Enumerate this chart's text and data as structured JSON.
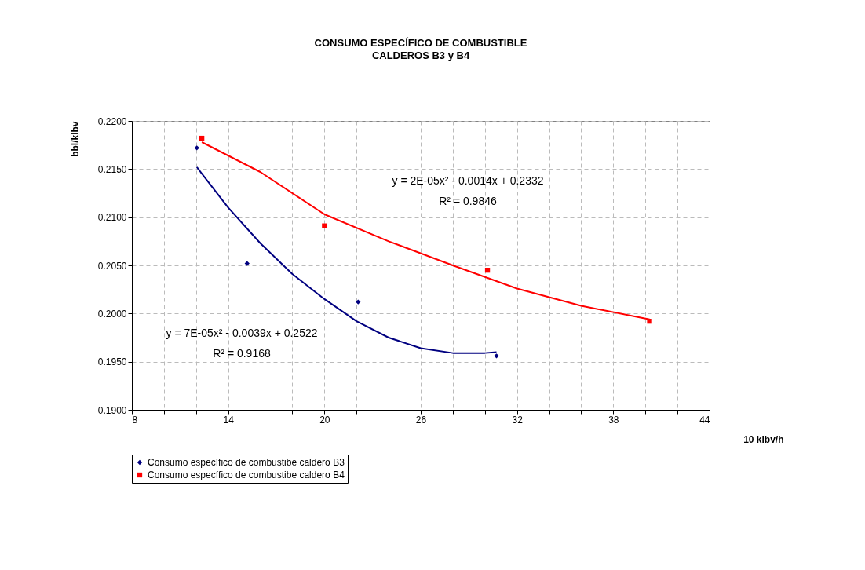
{
  "chart_data": {
    "type": "scatter",
    "title": "CONSUMO ESPECÍFICO DE COMBUSTIBLE",
    "subtitle": "CALDEROS B3 y B4",
    "xlabel": "10 klbv/h",
    "ylabel": "bbl/klbv",
    "xlim": [
      8,
      44
    ],
    "xticks": [
      8,
      {
        "value": 10,
        "label": null
      },
      {
        "value": 12,
        "label": null
      },
      14,
      {
        "value": 16,
        "label": null
      },
      {
        "value": 18,
        "label": null
      },
      20,
      {
        "value": 22,
        "label": null
      },
      {
        "value": 24,
        "label": null
      },
      26,
      {
        "value": 28,
        "label": null
      },
      {
        "value": 30,
        "label": null
      },
      32,
      {
        "value": 34,
        "label": null
      },
      {
        "value": 36,
        "label": null
      },
      38,
      {
        "value": 40,
        "label": null
      },
      {
        "value": 42,
        "label": null
      },
      44
    ],
    "ylim": [
      0.19,
      0.22
    ],
    "yticks": [
      {
        "value": 0.19,
        "label": "0.1900"
      },
      {
        "value": 0.195,
        "label": "0.1950"
      },
      {
        "value": 0.2,
        "label": "0.2000"
      },
      {
        "value": 0.205,
        "label": "0.2050"
      },
      {
        "value": 0.21,
        "label": "0.2100"
      },
      {
        "value": 0.215,
        "label": "0.2150"
      },
      {
        "value": 0.22,
        "label": "0.2200"
      }
    ],
    "grid": true,
    "legend": "bottom",
    "series": [
      {
        "name": "Consumo específico de combustibe caldero B3",
        "type": "scatter",
        "marker": "diamond",
        "color": "#000080",
        "x": [
          12.05,
          15.18,
          22.1,
          30.72
        ],
        "values": [
          0.2172,
          0.2052,
          0.2012,
          0.1956
        ]
      },
      {
        "name": "Consumo específico de combustibe caldero B4",
        "type": "scatter",
        "marker": "square",
        "color": "#ff0000",
        "x": [
          12.36,
          20.0,
          30.16,
          40.26
        ],
        "values": [
          0.2182,
          0.2091,
          0.2045,
          0.1992
        ]
      },
      {
        "type": "line",
        "color": "#000080",
        "x": [
          12.05,
          14,
          16,
          18,
          20,
          22,
          24,
          26,
          28,
          30,
          30.72
        ],
        "values": [
          0.2152,
          0.211,
          0.2073,
          0.2041,
          0.2015,
          0.1992,
          0.1975,
          0.1964,
          0.1959,
          0.1959,
          0.196
        ]
      },
      {
        "type": "line",
        "color": "#ff0000",
        "x": [
          12.36,
          16,
          20,
          24,
          28,
          32,
          36,
          40.26
        ],
        "values": [
          0.2178,
          0.2147,
          0.2103,
          0.2075,
          0.205,
          0.2026,
          0.2008,
          0.1994
        ]
      }
    ],
    "annotations": [
      "y = 2E-05x² - 0.0014x + 0.2332",
      "R² = 0.9846",
      "y = 7E-05x² - 0.0039x + 0.2522",
      "R² = 0.9168"
    ]
  }
}
